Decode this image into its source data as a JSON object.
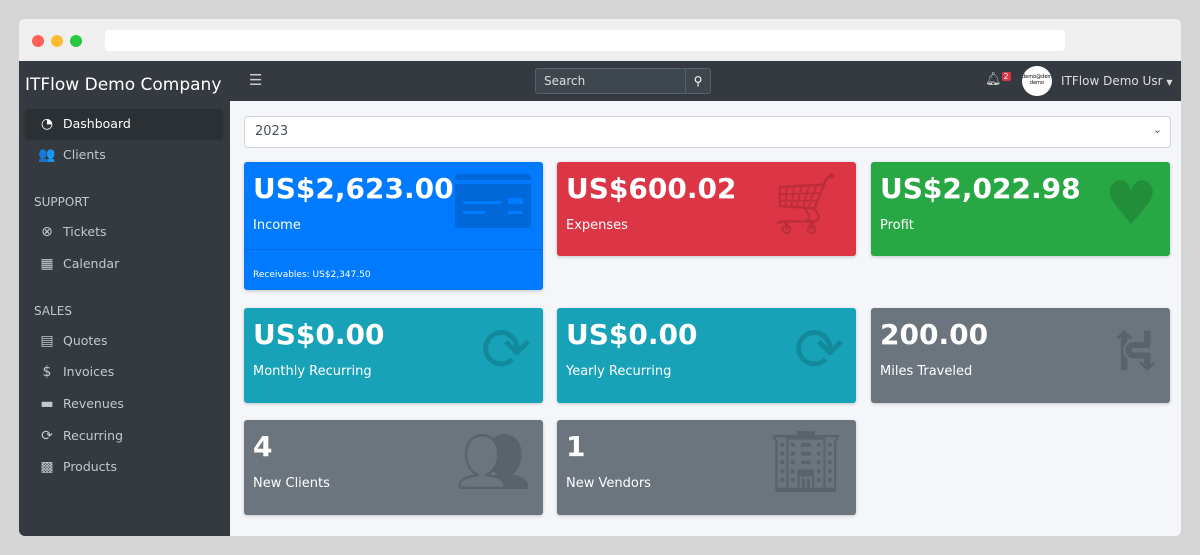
{
  "sidebar": {
    "brand": "ITFlow Demo Company",
    "items": [
      {
        "label": "Dashboard",
        "icon": "tachometer-icon"
      },
      {
        "label": "Clients",
        "icon": "users-icon"
      }
    ],
    "support_header": "SUPPORT",
    "support": [
      {
        "label": "Tickets",
        "icon": "life-ring-icon"
      },
      {
        "label": "Calendar",
        "icon": "calendar-icon"
      }
    ],
    "sales_header": "SALES",
    "sales": [
      {
        "label": "Quotes",
        "icon": "file-icon"
      },
      {
        "label": "Invoices",
        "icon": "invoice-icon"
      },
      {
        "label": "Revenues",
        "icon": "credit-card-icon"
      },
      {
        "label": "Recurring",
        "icon": "sync-icon"
      },
      {
        "label": "Products",
        "icon": "box-icon"
      }
    ]
  },
  "header": {
    "search_placeholder": "Search",
    "notifications": "2",
    "avatar_text": "demo@demo demo",
    "user": "ITFlow Demo Usr"
  },
  "year_select": "2023",
  "cards": [
    {
      "value": "US$2,623.00",
      "label": "Income",
      "footer": "Receivables: US$2,347.50",
      "color": "#007bff"
    },
    {
      "value": "US$600.02",
      "label": "Expenses",
      "color": "#dc3545"
    },
    {
      "value": "US$2,022.98",
      "label": "Profit",
      "color": "#28a745"
    },
    {
      "value": "US$0.00",
      "label": "Monthly Recurring",
      "color": "#17a2b8"
    },
    {
      "value": "US$0.00",
      "label": "Yearly Recurring",
      "color": "#17a2b8"
    },
    {
      "value": "200.00",
      "label": "Miles Traveled",
      "color": "#6c757d"
    },
    {
      "value": "4",
      "label": "New Clients",
      "color": "#6c757d"
    },
    {
      "value": "1",
      "label": "New Vendors",
      "color": "#6c757d"
    }
  ]
}
